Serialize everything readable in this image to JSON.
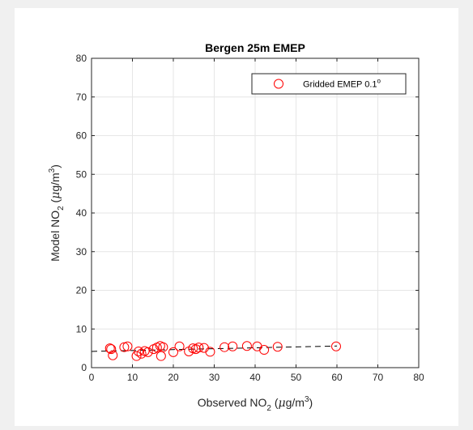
{
  "chart_data": {
    "type": "scatter",
    "title": "Bergen 25m EMEP",
    "xlabel": {
      "prefix": "Observed NO",
      "subscript": "2",
      "unit_open": " (",
      "mu": "μ",
      "unit_mid": "g/m",
      "superscript": "3",
      "unit_close": ")"
    },
    "ylabel": {
      "prefix": "Model NO",
      "subscript": "2",
      "unit_open": " (",
      "mu": "μ",
      "unit_mid": "g/m",
      "superscript": "3",
      "unit_close": ")"
    },
    "xlim": [
      0,
      80
    ],
    "ylim": [
      0,
      80
    ],
    "xticks": [
      0,
      10,
      20,
      30,
      40,
      50,
      60,
      70,
      80
    ],
    "yticks": [
      0,
      10,
      20,
      30,
      40,
      50,
      60,
      70,
      80
    ],
    "grid": true,
    "legend": {
      "position": "top-right",
      "label": "Gridded EMEP 0.1",
      "label_superscript": "o"
    },
    "series": [
      {
        "name": "Gridded EMEP 0.1°",
        "marker": "circle",
        "color": "#ff0000",
        "points": [
          [
            4.5,
            5.0
          ],
          [
            4.8,
            4.8
          ],
          [
            5.2,
            3.2
          ],
          [
            8.0,
            5.3
          ],
          [
            8.8,
            5.5
          ],
          [
            11.0,
            3.0
          ],
          [
            11.5,
            4.2
          ],
          [
            12.2,
            3.6
          ],
          [
            13.0,
            4.3
          ],
          [
            13.8,
            4.0
          ],
          [
            15.2,
            4.8
          ],
          [
            16.0,
            5.2
          ],
          [
            16.8,
            5.6
          ],
          [
            17.0,
            3.0
          ],
          [
            17.5,
            5.3
          ],
          [
            20.0,
            4.0
          ],
          [
            21.5,
            5.5
          ],
          [
            23.8,
            4.2
          ],
          [
            24.8,
            5.0
          ],
          [
            25.5,
            4.8
          ],
          [
            26.2,
            5.2
          ],
          [
            27.5,
            5.1
          ],
          [
            29.0,
            4.1
          ],
          [
            32.5,
            5.3
          ],
          [
            34.5,
            5.5
          ],
          [
            38.0,
            5.6
          ],
          [
            40.5,
            5.5
          ],
          [
            42.2,
            4.6
          ],
          [
            45.5,
            5.4
          ],
          [
            59.8,
            5.5
          ]
        ]
      }
    ],
    "fit_line": {
      "style": "dashed",
      "color": "#000000",
      "points": [
        [
          0,
          4.2
        ],
        [
          60,
          5.6
        ]
      ]
    }
  }
}
